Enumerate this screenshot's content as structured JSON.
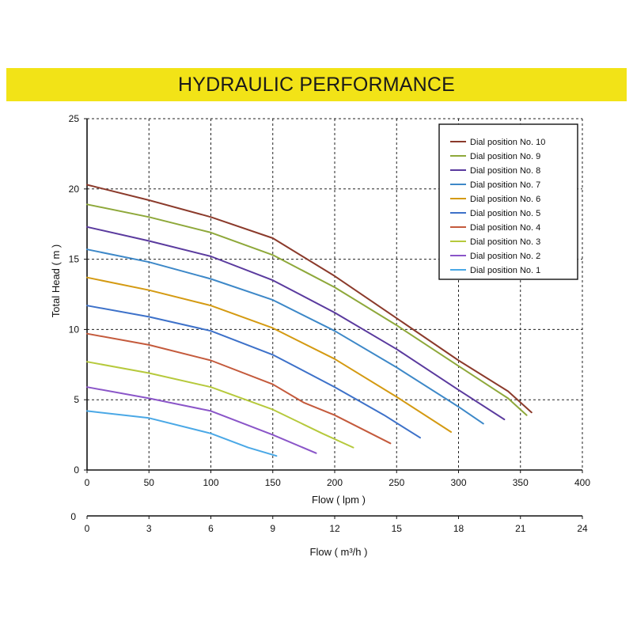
{
  "banner": {
    "title": "HYDRAULIC PERFORMANCE",
    "color": "#f2e317"
  },
  "chart_data": {
    "type": "line",
    "title": "HYDRAULIC PERFORMANCE",
    "xlabel": "Flow ( lpm )",
    "ylabel": "Total Head ( m )",
    "xlim": [
      0,
      400
    ],
    "ylim": [
      0,
      25
    ],
    "x_ticks": [
      0,
      50,
      100,
      150,
      200,
      250,
      300,
      350,
      400
    ],
    "y_ticks": [
      0,
      5,
      10,
      15,
      20,
      25
    ],
    "grid": true,
    "legend_position": "top-right",
    "secondary_axis": {
      "label": "Flow ( m³/h )",
      "ticks": [
        0,
        3,
        6,
        9,
        12,
        15,
        18,
        21,
        24
      ],
      "left_label": "0"
    },
    "series": [
      {
        "name": "Dial position No. 10",
        "color": "#8b3a2b",
        "x": [
          0,
          50,
          100,
          150,
          200,
          250,
          300,
          340,
          359
        ],
        "y": [
          20.3,
          19.2,
          18.0,
          16.5,
          13.8,
          10.8,
          7.8,
          5.6,
          4.1
        ]
      },
      {
        "name": "Dial position No. 9",
        "color": "#8ea83a",
        "x": [
          0,
          50,
          100,
          150,
          200,
          250,
          300,
          340,
          355
        ],
        "y": [
          18.9,
          18.0,
          16.9,
          15.3,
          13.0,
          10.3,
          7.4,
          5.1,
          3.9
        ]
      },
      {
        "name": "Dial position No. 8",
        "color": "#5a3a9e",
        "x": [
          0,
          50,
          100,
          150,
          200,
          250,
          300,
          337
        ],
        "y": [
          17.3,
          16.3,
          15.2,
          13.5,
          11.2,
          8.6,
          5.7,
          3.6
        ]
      },
      {
        "name": "Dial position No. 7",
        "color": "#3d88c8",
        "x": [
          0,
          50,
          100,
          150,
          200,
          250,
          300,
          320
        ],
        "y": [
          15.7,
          14.8,
          13.6,
          12.1,
          9.9,
          7.3,
          4.5,
          3.3
        ]
      },
      {
        "name": "Dial position No. 6",
        "color": "#d49a12",
        "x": [
          0,
          50,
          100,
          150,
          200,
          250,
          294
        ],
        "y": [
          13.7,
          12.8,
          11.7,
          10.1,
          7.9,
          5.2,
          2.7
        ]
      },
      {
        "name": "Dial position No. 5",
        "color": "#3d71c9",
        "x": [
          0,
          50,
          100,
          150,
          200,
          240,
          269
        ],
        "y": [
          11.7,
          10.9,
          9.9,
          8.2,
          5.9,
          3.9,
          2.3
        ]
      },
      {
        "name": "Dial position No. 4",
        "color": "#c45a3c",
        "x": [
          0,
          50,
          100,
          150,
          175,
          200,
          245
        ],
        "y": [
          9.7,
          8.9,
          7.8,
          6.1,
          4.8,
          3.9,
          1.9
        ]
      },
      {
        "name": "Dial position No. 3",
        "color": "#b6c93c",
        "x": [
          0,
          50,
          100,
          150,
          190,
          215
        ],
        "y": [
          7.7,
          6.9,
          5.9,
          4.3,
          2.6,
          1.6
        ]
      },
      {
        "name": "Dial position No. 2",
        "color": "#8a55c8",
        "x": [
          0,
          50,
          100,
          150,
          185
        ],
        "y": [
          5.9,
          5.1,
          4.2,
          2.5,
          1.2
        ]
      },
      {
        "name": "Dial position No. 1",
        "color": "#4aa8e6",
        "x": [
          0,
          50,
          100,
          130,
          153
        ],
        "y": [
          4.2,
          3.7,
          2.6,
          1.6,
          1.0
        ]
      }
    ]
  }
}
